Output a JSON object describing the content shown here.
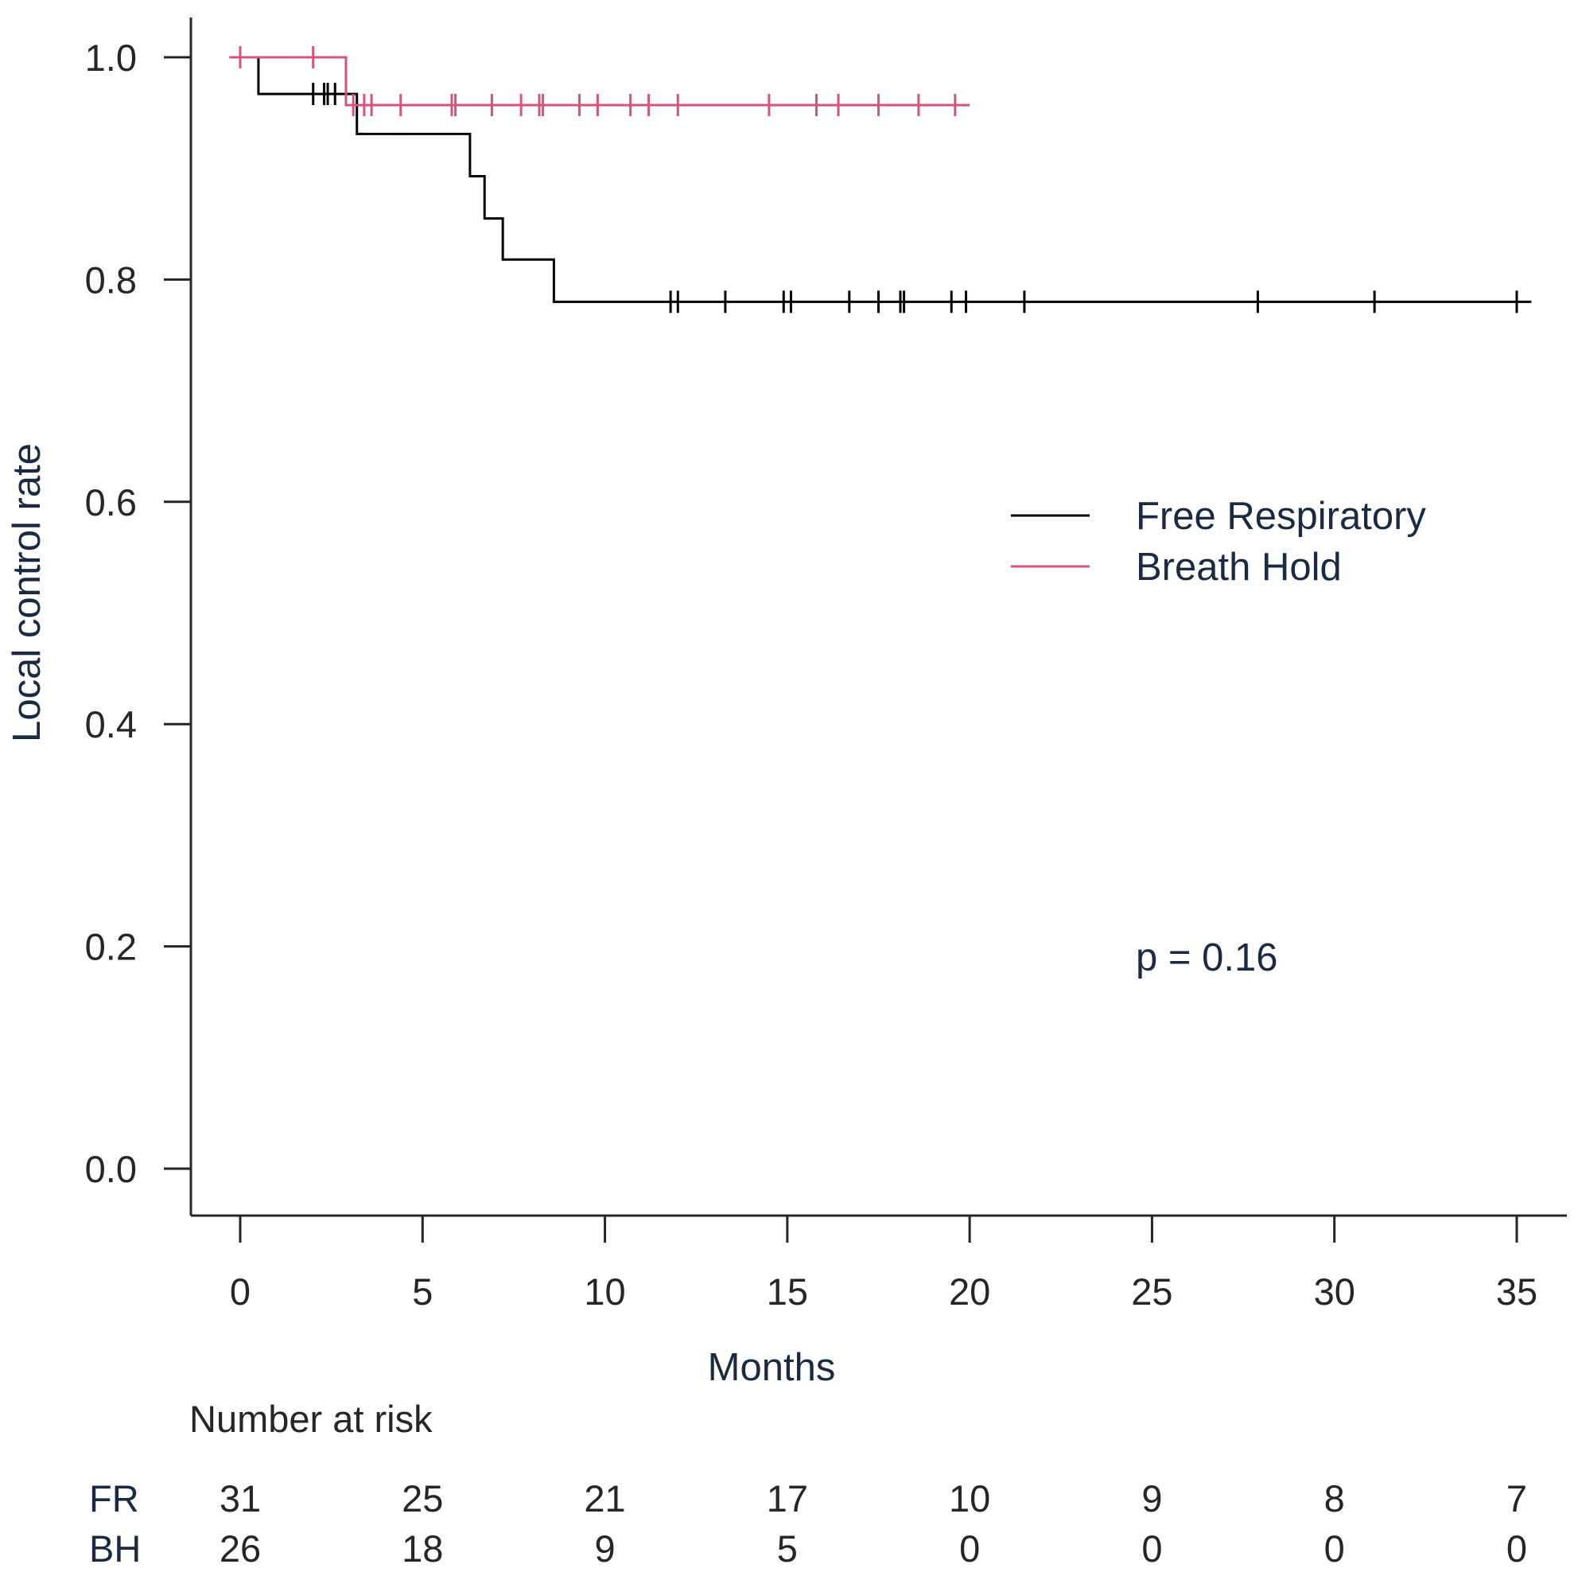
{
  "chart_data": {
    "type": "line",
    "subtype": "kaplan-meier",
    "xlabel": "Months",
    "ylabel": "Local control rate",
    "xlim": [
      0,
      35
    ],
    "ylim": [
      0,
      1
    ],
    "x_ticks": [
      "0",
      "5",
      "10",
      "15",
      "20",
      "25",
      "30",
      "35"
    ],
    "y_ticks": [
      "0.0",
      "0.2",
      "0.4",
      "0.6",
      "0.8",
      "1.0"
    ],
    "grid": false,
    "legend_position": "right-center",
    "annotation": "p = 0.16",
    "series": [
      {
        "name": "Free Respiratory",
        "color": "#000000",
        "steps": [
          [
            0,
            1.0
          ],
          [
            0.5,
            0.967
          ],
          [
            3.2,
            0.931
          ],
          [
            6.3,
            0.893
          ],
          [
            6.7,
            0.855
          ],
          [
            7.2,
            0.818
          ],
          [
            8.6,
            0.78
          ]
        ],
        "end_x": 35.4,
        "censor_times": [
          2.0,
          2.3,
          2.4,
          2.6,
          11.8,
          12.0,
          13.3,
          14.9,
          15.1,
          16.7,
          17.5,
          18.1,
          18.2,
          19.5,
          19.9,
          21.5,
          27.9,
          31.1,
          35.0
        ]
      },
      {
        "name": "Breath Hold",
        "color": "#d6537a",
        "steps": [
          [
            -0.3,
            1.0
          ],
          [
            2.9,
            0.957
          ]
        ],
        "end_x": 20.0,
        "censor_times": [
          0.0,
          2.0,
          3.1,
          3.4,
          3.6,
          4.4,
          5.8,
          5.9,
          6.9,
          7.7,
          8.2,
          8.3,
          9.3,
          9.8,
          10.7,
          11.2,
          12.0,
          14.5,
          15.8,
          16.4,
          17.5,
          18.6,
          19.6
        ]
      }
    ],
    "risk_table": {
      "title": "Number at risk",
      "times": [
        0,
        5,
        10,
        15,
        20,
        25,
        30,
        35
      ],
      "rows": [
        {
          "label": "FR",
          "values": [
            "31",
            "25",
            "21",
            "17",
            "10",
            "9",
            "8",
            "7"
          ]
        },
        {
          "label": "BH",
          "values": [
            "26",
            "18",
            "9",
            "5",
            "0",
            "0",
            "0",
            "0"
          ]
        }
      ]
    }
  }
}
